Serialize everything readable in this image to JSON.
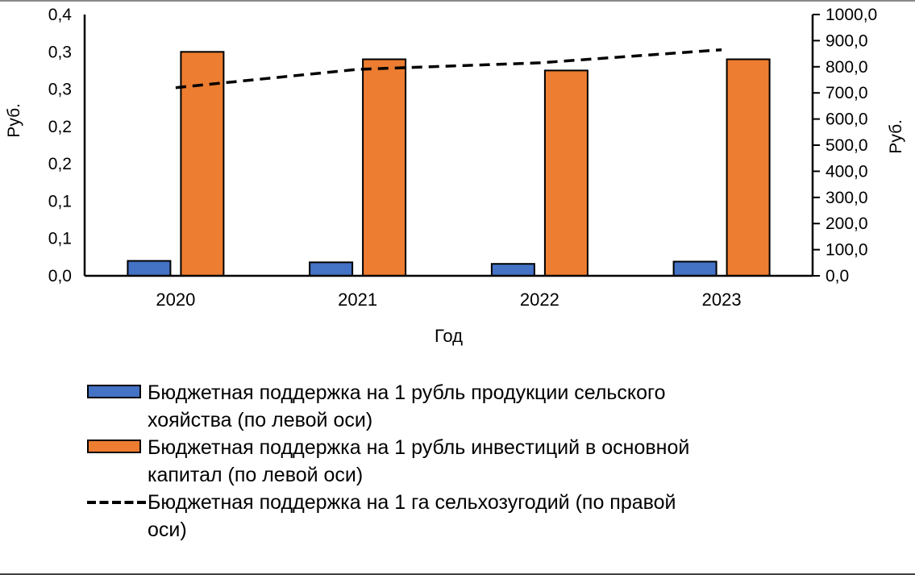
{
  "chart_data": {
    "type": "combo-bar-line",
    "categories": [
      "2020",
      "2021",
      "2022",
      "2023"
    ],
    "series": [
      {
        "name": "Бюджетная поддержка на 1 рубль продукции сельского хояйства (по левой оси)",
        "type": "bar",
        "axis": "left",
        "color": "#4472C4",
        "values": [
          0.02,
          0.018,
          0.016,
          0.019
        ]
      },
      {
        "name": "Бюджетная поддержка на 1 рубль инвестиций в основной капитал (по левой оси)",
        "type": "bar",
        "axis": "left",
        "color": "#ED7D31",
        "values": [
          0.3,
          0.29,
          0.275,
          0.29
        ]
      },
      {
        "name": "Бюджетная поддержка на 1 га сельхозугодий (по правой оси)",
        "type": "line",
        "axis": "right",
        "color": "#000000",
        "dashed": true,
        "values": [
          720,
          790,
          815,
          865
        ]
      }
    ],
    "left_axis": {
      "title": "Руб.",
      "min": 0,
      "max": 0.35,
      "step": 0.05,
      "tick_labels": [
        "0,0",
        "0,1",
        "0,1",
        "0,2",
        "0,2",
        "0,3",
        "0,3",
        "0,4"
      ]
    },
    "right_axis": {
      "title": "Руб.",
      "min": 0,
      "max": 1000,
      "step": 100,
      "tick_labels": [
        "0,0",
        "100,0",
        "200,0",
        "300,0",
        "400,0",
        "500,0",
        "600,0",
        "700,0",
        "800,0",
        "900,0",
        "1000,0"
      ]
    },
    "x_axis": {
      "title": "Год",
      "tick_labels": [
        "2020",
        "2021",
        "2022",
        "2023"
      ]
    },
    "grid": false,
    "legend_position": "bottom",
    "legend": [
      {
        "swatch": "bar",
        "color": "#4472C4",
        "lines": [
          "Бюджетная поддержка на 1 рубль продукции сельского",
          "хояйства (по левой оси)"
        ]
      },
      {
        "swatch": "bar",
        "color": "#ED7D31",
        "lines": [
          "Бюджетная поддержка на 1 рубль инвестиций в основной",
          "капитал (по левой оси)"
        ]
      },
      {
        "swatch": "dash",
        "color": "#000000",
        "lines": [
          "Бюджетная поддержка на 1 га сельхозугодий (по правой",
          "оси)"
        ]
      }
    ]
  }
}
